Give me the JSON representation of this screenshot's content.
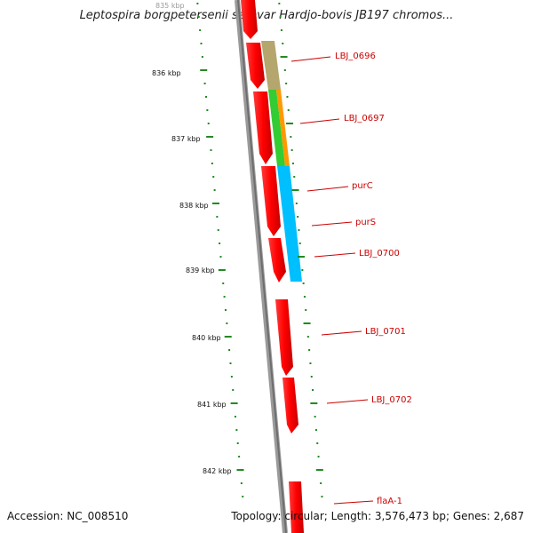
{
  "title": "Leptospira borgpetersenii serovar Hardjo-bovis JB197 chromos...",
  "footer": {
    "accession": "Accession: NC_008510",
    "summary": "Topology: circular; Length: 3,576,473 bp; Genes: 2,687"
  },
  "scale_labels": [
    "835 kbp",
    "836 kbp",
    "837 kbp",
    "838 kbp",
    "839 kbp",
    "840 kbp",
    "841 kbp",
    "842 kbp"
  ],
  "gene_labels": [
    "LBJ_0696",
    "LBJ_0697",
    "purC",
    "purS",
    "LBJ_0700",
    "LBJ_0701",
    "LBJ_0702",
    "flaA-1"
  ],
  "colors": {
    "backbone": "#808080",
    "gene_arrow": "#ff0000",
    "scale_ticks": "#228b22",
    "label_text": "#cc0000",
    "cds_khaki": "#b5a66e",
    "cds_orange": "#ff9900",
    "cds_green": "#33cc33",
    "cds_blue": "#00bfff"
  }
}
